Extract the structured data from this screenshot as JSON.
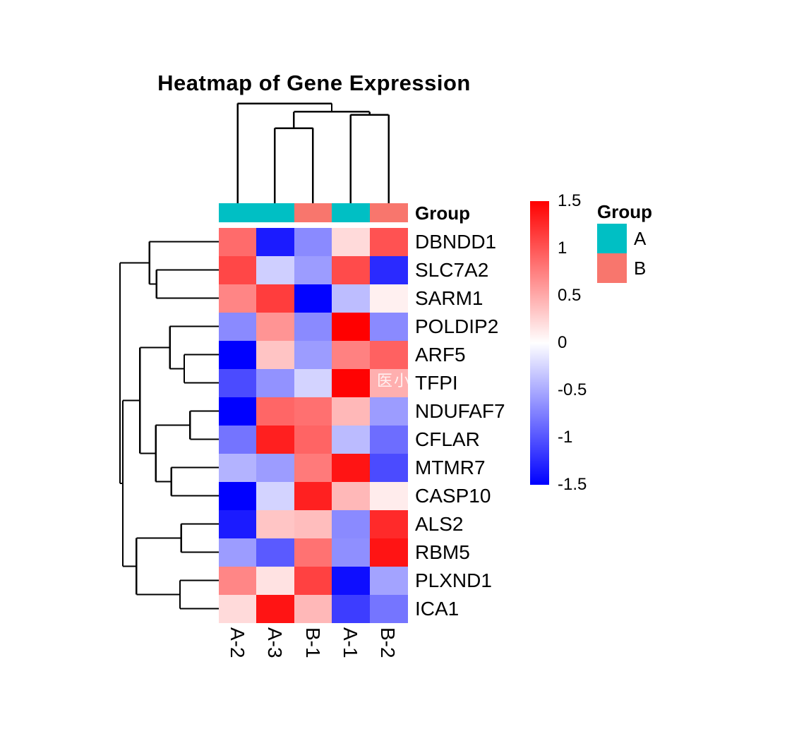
{
  "title": "Heatmap of Gene Expression",
  "watermark": "医小",
  "colors": {
    "group_a": "#00BFC4",
    "group_b": "#F8766D",
    "scale_high": "#FF0000",
    "scale_mid": "#FFFFFF",
    "scale_low": "#0000FF",
    "dendrogram_line": "#000000"
  },
  "chart_data": {
    "type": "heatmap",
    "title": "Heatmap of Gene Expression",
    "columns": [
      "A-2",
      "A-3",
      "B-1",
      "A-1",
      "B-2"
    ],
    "rows": [
      "DBNDD1",
      "SLC7A2",
      "SARM1",
      "POLDIP2",
      "ARF5",
      "TFPI",
      "NDUFAF7",
      "CFLAR",
      "MTMR7",
      "CASP10",
      "ALS2",
      "RBM5",
      "PLXND1",
      "ICA1"
    ],
    "values": [
      [
        0.87,
        -1.34,
        -0.69,
        0.22,
        1.02
      ],
      [
        1.08,
        -0.28,
        -0.58,
        1.06,
        -1.25
      ],
      [
        0.72,
        1.14,
        -1.48,
        -0.39,
        0.09
      ],
      [
        -0.69,
        0.63,
        -0.69,
        1.5,
        -0.69
      ],
      [
        -1.5,
        0.35,
        -0.58,
        0.74,
        0.93
      ],
      [
        -1.06,
        -0.64,
        -0.26,
        1.48,
        0.47
      ],
      [
        -1.5,
        0.9,
        0.84,
        0.42,
        -0.58
      ],
      [
        -0.82,
        1.32,
        0.91,
        -0.4,
        -0.86
      ],
      [
        -0.45,
        -0.58,
        0.78,
        1.38,
        -1.06
      ],
      [
        -1.5,
        -0.26,
        1.31,
        0.42,
        0.11
      ],
      [
        -1.34,
        0.34,
        0.39,
        -0.69,
        1.25
      ],
      [
        -0.58,
        -0.97,
        0.83,
        -0.66,
        1.38
      ],
      [
        0.71,
        0.17,
        1.12,
        -1.42,
        -0.54
      ],
      [
        0.22,
        1.38,
        0.42,
        -1.14,
        -0.81
      ]
    ],
    "value_range": [
      -1.5,
      1.5
    ],
    "annotation_label": "Group",
    "column_groups": [
      "A",
      "A",
      "B",
      "A",
      "B"
    ],
    "colorscale_ticks": [
      "1.5",
      "1",
      "0.5",
      "0",
      "-0.5",
      "-1",
      "-1.5"
    ],
    "legend": {
      "title": "Group",
      "entries": [
        {
          "label": "A",
          "color": "#00BFC4"
        },
        {
          "label": "B",
          "color": "#F8766D"
        }
      ]
    },
    "column_dendrogram_segments": [
      [
        336.7,
        288.0,
        336.7,
        146.7
      ],
      [
        336.7,
        146.7,
        470.0,
        146.7
      ],
      [
        470.0,
        146.7,
        470.0,
        158.3
      ],
      [
        416.3,
        158.3,
        523.7,
        158.3
      ],
      [
        416.3,
        158.3,
        416.3,
        181.7
      ],
      [
        389.3,
        181.7,
        443.3,
        181.7
      ],
      [
        389.3,
        181.7,
        389.3,
        288.0
      ],
      [
        443.3,
        181.7,
        443.3,
        288.0
      ],
      [
        523.7,
        158.3,
        523.7,
        162.7
      ],
      [
        496.7,
        162.7,
        550.7,
        162.7
      ],
      [
        496.7,
        162.7,
        496.7,
        288.0
      ],
      [
        550.7,
        162.7,
        550.7,
        288.0
      ]
    ],
    "row_dendrogram_segments": [
      [
        211.7,
        342.5,
        310.0,
        342.5
      ],
      [
        221.7,
        382.5,
        310.0,
        382.5
      ],
      [
        221.7,
        422.5,
        310.0,
        422.5
      ],
      [
        221.7,
        382.5,
        221.7,
        422.5
      ],
      [
        211.7,
        402.5,
        221.7,
        402.5
      ],
      [
        211.7,
        342.5,
        211.7,
        402.5
      ],
      [
        170.0,
        372.5,
        211.7,
        372.5
      ],
      [
        240.7,
        462.5,
        310.0,
        462.5
      ],
      [
        261.0,
        502.5,
        310.0,
        502.5
      ],
      [
        261.0,
        542.5,
        310.0,
        542.5
      ],
      [
        261.0,
        502.5,
        261.0,
        542.5
      ],
      [
        240.7,
        522.5,
        261.0,
        522.5
      ],
      [
        240.7,
        462.5,
        240.7,
        522.5
      ],
      [
        198.3,
        492.5,
        240.7,
        492.5
      ],
      [
        269.3,
        582.5,
        310.0,
        582.5
      ],
      [
        269.3,
        622.5,
        310.0,
        622.5
      ],
      [
        269.3,
        582.5,
        269.3,
        622.5
      ],
      [
        220.7,
        602.5,
        269.3,
        602.5
      ],
      [
        242.7,
        662.5,
        310.0,
        662.5
      ],
      [
        242.7,
        702.5,
        310.0,
        702.5
      ],
      [
        242.7,
        662.5,
        242.7,
        702.5
      ],
      [
        220.7,
        682.5,
        242.7,
        682.5
      ],
      [
        220.7,
        602.5,
        220.7,
        682.5
      ],
      [
        198.3,
        642.5,
        220.7,
        642.5
      ],
      [
        198.3,
        492.5,
        198.3,
        642.5
      ],
      [
        174.0,
        567.5,
        198.3,
        567.5
      ],
      [
        256.7,
        742.5,
        310.0,
        742.5
      ],
      [
        256.7,
        782.5,
        310.0,
        782.5
      ],
      [
        256.7,
        742.5,
        256.7,
        782.5
      ],
      [
        193.3,
        762.5,
        256.7,
        762.5
      ],
      [
        255.0,
        822.5,
        310.0,
        822.5
      ],
      [
        255.0,
        862.5,
        310.0,
        862.5
      ],
      [
        255.0,
        822.5,
        255.0,
        862.5
      ],
      [
        193.3,
        842.5,
        255.0,
        842.5
      ],
      [
        193.3,
        762.5,
        193.3,
        842.5
      ],
      [
        174.0,
        802.5,
        193.3,
        802.5
      ],
      [
        174.0,
        567.5,
        174.0,
        802.5
      ],
      [
        170.0,
        685.0,
        174.0,
        685.0
      ],
      [
        170.0,
        372.5,
        170.0,
        685.0
      ]
    ]
  }
}
